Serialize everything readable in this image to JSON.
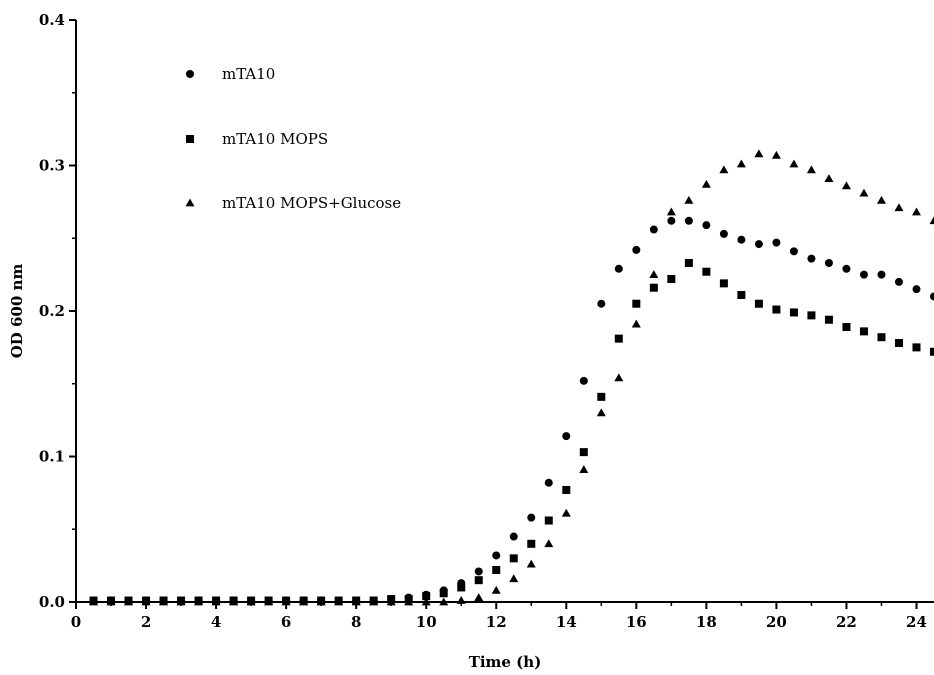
{
  "chart_data": {
    "type": "scatter",
    "xlabel": "Time (h)",
    "ylabel": "OD 600 nm",
    "xlim": [
      0,
      24.5
    ],
    "ylim": [
      0,
      0.4
    ],
    "xticks": [
      "0",
      "2",
      "4",
      "6",
      "8",
      "10",
      "12",
      "14",
      "16",
      "18",
      "20",
      "22",
      "24"
    ],
    "yticks": [
      "0.0",
      "0.1",
      "0.2",
      "0.3",
      "0.4"
    ],
    "legend": "top-left",
    "grid": false,
    "x": [
      0.5,
      1,
      1.5,
      2,
      2.5,
      3,
      3.5,
      4,
      4.5,
      5,
      5.5,
      6,
      6.5,
      7,
      7.5,
      8,
      8.5,
      9,
      9.5,
      10,
      10.5,
      11,
      11.5,
      12,
      12.5,
      13,
      13.5,
      14,
      14.5,
      15,
      15.5,
      16,
      16.5,
      17,
      17.5,
      18,
      18.5,
      19,
      19.5,
      20,
      20.5,
      21,
      21.5,
      22,
      22.5,
      23,
      23.5,
      24,
      24.5
    ],
    "series": [
      {
        "name": "mTA10",
        "marker": "circle",
        "values": [
          0.001,
          0.001,
          0.001,
          0.001,
          0.001,
          0.001,
          0.001,
          0.001,
          0.001,
          0.001,
          0.001,
          0.001,
          0.001,
          0.001,
          0.001,
          0.001,
          0.001,
          0.002,
          0.003,
          0.005,
          0.008,
          0.013,
          0.021,
          0.032,
          0.045,
          0.058,
          0.082,
          0.114,
          0.152,
          0.205,
          0.229,
          0.242,
          0.256,
          0.262,
          0.262,
          0.259,
          0.253,
          0.249,
          0.246,
          0.247,
          0.241,
          0.236,
          0.233,
          0.229,
          0.225,
          0.225,
          0.22,
          0.215,
          0.21
        ]
      },
      {
        "name": "mTA10 MOPS",
        "marker": "square",
        "values": [
          0.001,
          0.001,
          0.001,
          0.001,
          0.001,
          0.001,
          0.001,
          0.001,
          0.001,
          0.001,
          0.001,
          0.001,
          0.001,
          0.001,
          0.001,
          0.001,
          0.001,
          0.002,
          0.002,
          0.004,
          0.006,
          0.01,
          0.015,
          0.022,
          0.03,
          0.04,
          0.056,
          0.077,
          0.103,
          0.141,
          0.181,
          0.205,
          0.216,
          0.222,
          0.233,
          0.227,
          0.219,
          0.211,
          0.205,
          0.201,
          0.199,
          0.197,
          0.194,
          0.189,
          0.186,
          0.182,
          0.178,
          0.175,
          0.172
        ]
      },
      {
        "name": "mTA10 MOPS+Glucose",
        "marker": "triangle",
        "values": [
          0.0,
          0.0,
          0.0,
          0.0,
          0.0,
          0.0,
          0.0,
          0.0,
          0.0,
          0.0,
          0.0,
          0.0,
          0.0,
          0.0,
          0.0,
          0.0,
          0.0,
          0.0,
          0.0,
          0.0,
          0.0,
          0.001,
          0.003,
          0.008,
          0.016,
          0.026,
          0.04,
          0.061,
          0.091,
          0.13,
          0.154,
          0.191,
          0.225,
          0.268,
          0.276,
          0.287,
          0.297,
          0.301,
          0.308,
          0.307,
          0.301,
          0.297,
          0.291,
          0.286,
          0.281,
          0.276,
          0.271,
          0.268,
          0.262
        ]
      }
    ]
  }
}
